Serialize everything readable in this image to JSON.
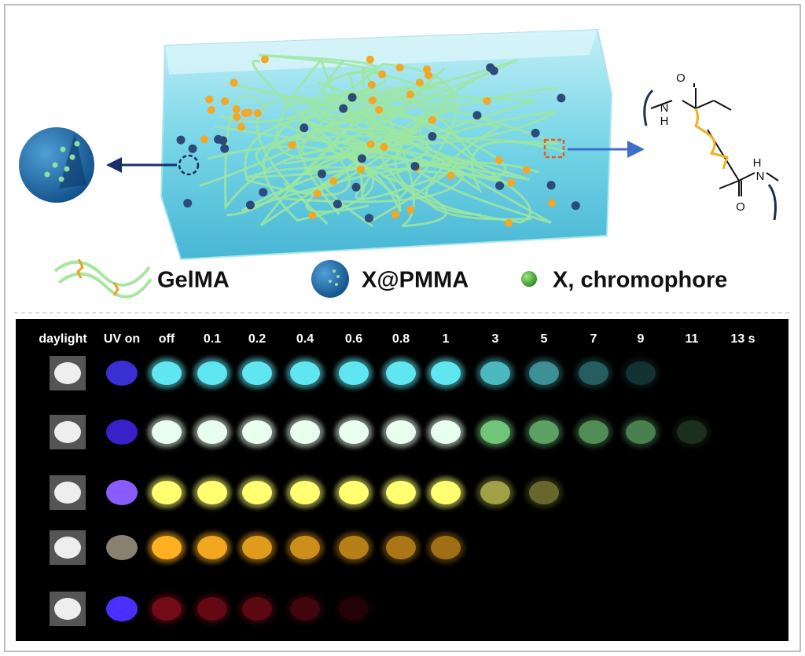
{
  "structure": {
    "atoms": [
      "O",
      "N",
      "H",
      "H",
      "N",
      "O"
    ]
  },
  "legend": [
    "GelMA",
    "X@PMMA",
    "X, chromophore"
  ],
  "columns": [
    "daylight",
    "UV on",
    "off",
    "0.1",
    "0.2",
    "0.4",
    "0.6",
    "0.8",
    "1",
    "3",
    "5",
    "7",
    "9",
    "11",
    "13 s"
  ]
}
